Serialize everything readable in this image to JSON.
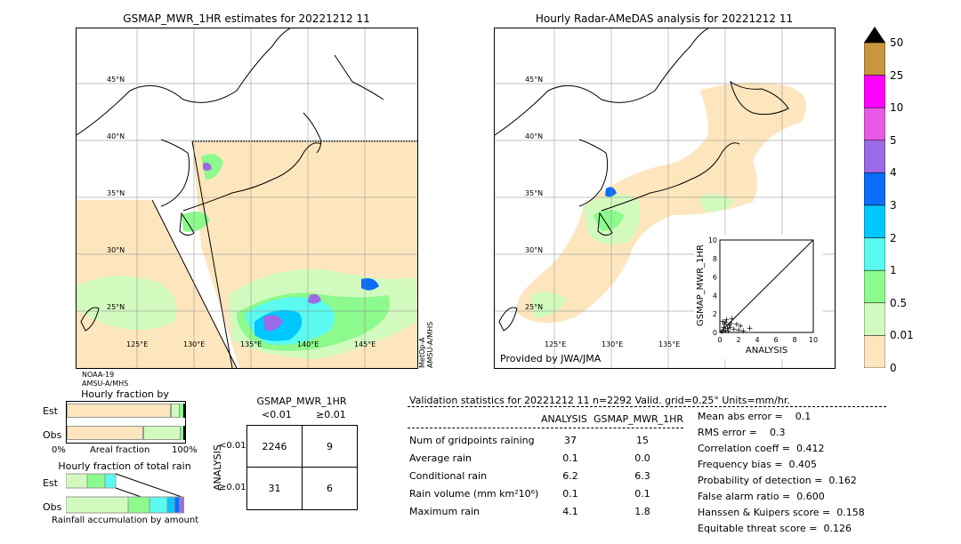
{
  "left_map": {
    "title": "GSMAP_MWR_1HR estimates for 20221212 11",
    "lat_labels": [
      "45°N",
      "40°N",
      "35°N",
      "30°N",
      "25°N"
    ],
    "lon_labels": [
      "125°E",
      "130°E",
      "135°E",
      "140°E",
      "145°E"
    ],
    "sat_left": [
      "NOAA-19",
      "AMSU-A/MHS"
    ],
    "sat_right": [
      "MetOp-A",
      "AMSU-A/MHS"
    ]
  },
  "right_map": {
    "title": "Hourly Radar-AMeDAS analysis for 20221212 11",
    "lat_labels": [
      "45°N",
      "40°N",
      "35°N",
      "30°N",
      "25°N"
    ],
    "lon_labels": [
      "125°E",
      "130°E",
      "135°E"
    ],
    "provided": "Provided by JWA/JMA"
  },
  "colorbar": {
    "labels": [
      "50",
      "25",
      "10",
      "5",
      "4",
      "3",
      "2",
      "1",
      "0.5",
      "0.01",
      "0"
    ],
    "colors": [
      "#c8963c",
      "#ff00ff",
      "#e65ae6",
      "#9b6ae6",
      "#0a6efa",
      "#00c8ff",
      "#5afaf0",
      "#8cfa8c",
      "#d2fabe",
      "#fde6be"
    ]
  },
  "occurrence": {
    "title": "Hourly fraction by occurence",
    "est": "Est",
    "obs": "Obs",
    "x0": "0%",
    "xmid": "Areal fraction",
    "x1": "100%"
  },
  "total_rain": {
    "title": "Hourly fraction of total rain",
    "est": "Est",
    "obs": "Obs",
    "footer": "Rainfall accumulation by amount"
  },
  "contingency": {
    "title": "GSMAP_MWR_1HR",
    "col1": "<0.01",
    "col2": "≥0.01",
    "axis": "ANALYSIS",
    "row1": "<0.01",
    "row2": "≥0.01",
    "cells": [
      "2246",
      "9",
      "31",
      "6"
    ]
  },
  "validation": {
    "header": "Validation statistics for 20221212 11  n=2292 Valid. grid=0.25° Units=mm/hr.",
    "col_analysis": "ANALYSIS",
    "col_gsmap": "GSMAP_MWR_1HR",
    "rows": [
      {
        "label": "Num of gridpoints raining",
        "a": "37",
        "g": "15"
      },
      {
        "label": "Average rain",
        "a": "0.1",
        "g": "0.0"
      },
      {
        "label": "Conditional rain",
        "a": "6.2",
        "g": "6.3"
      },
      {
        "label": "Rain volume (mm km²10⁶)",
        "a": "0.1",
        "g": "0.1"
      },
      {
        "label": "Maximum rain",
        "a": "4.1",
        "g": "1.8"
      }
    ],
    "scores": [
      "Mean abs error =    0.1",
      "RMS error =    0.3",
      "Correlation coeff =  0.412",
      "Frequency bias =  0.405",
      "Probability of detection =  0.162",
      "False alarm ratio =  0.600",
      "Hanssen & Kuipers score =  0.158",
      "Equitable threat score =  0.126"
    ]
  },
  "chart_data": {
    "type": "scatter",
    "xlabel": "ANALYSIS",
    "ylabel": "GSMAP_MWR_1HR",
    "xlim": [
      0,
      10
    ],
    "ylim": [
      0,
      10
    ],
    "ticks": [
      "0",
      "2",
      "4",
      "6",
      "8",
      "10"
    ],
    "points": [
      [
        0.2,
        0.1
      ],
      [
        0.4,
        0.3
      ],
      [
        0.6,
        0.2
      ],
      [
        0.8,
        0.5
      ],
      [
        1.0,
        0.8
      ],
      [
        1.2,
        1.0
      ],
      [
        0.3,
        1.2
      ],
      [
        0.5,
        0.9
      ],
      [
        1.5,
        0.4
      ],
      [
        2.0,
        0.3
      ],
      [
        0.7,
        1.4
      ],
      [
        1.1,
        0.6
      ],
      [
        2.5,
        0.2
      ],
      [
        3.2,
        0.5
      ],
      [
        0.9,
        0.2
      ],
      [
        1.8,
        0.9
      ],
      [
        0.4,
        0.6
      ],
      [
        1.3,
        1.5
      ],
      [
        2.2,
        0.7
      ],
      [
        0.6,
        1.1
      ]
    ]
  }
}
